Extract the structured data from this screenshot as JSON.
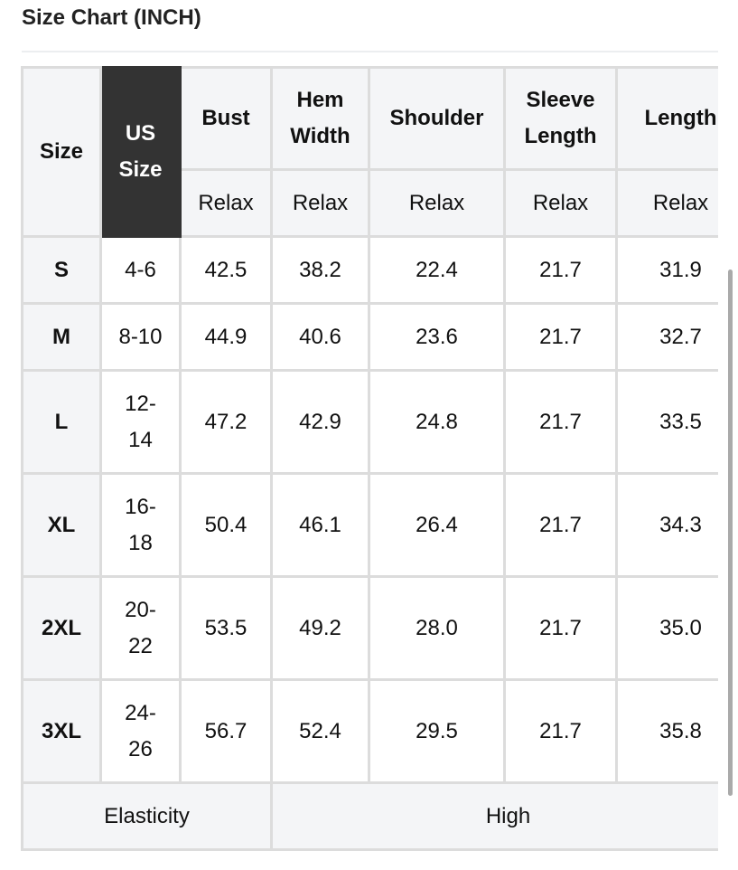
{
  "title": "Size Chart (INCH)",
  "headers": {
    "size": "Size",
    "us_size": "US Size",
    "columns": [
      "Bust",
      "Hem Width",
      "Shoulder",
      "Sleeve Length",
      "Length"
    ],
    "sub": [
      "Relax",
      "Relax",
      "Relax",
      "Relax",
      "Relax"
    ]
  },
  "rows": [
    {
      "size": "S",
      "us": "4-6",
      "values": [
        "42.5",
        "38.2",
        "22.4",
        "21.7",
        "31.9"
      ]
    },
    {
      "size": "M",
      "us": "8-10",
      "values": [
        "44.9",
        "40.6",
        "23.6",
        "21.7",
        "32.7"
      ]
    },
    {
      "size": "L",
      "us": "12-14",
      "values": [
        "47.2",
        "42.9",
        "24.8",
        "21.7",
        "33.5"
      ]
    },
    {
      "size": "XL",
      "us": "16-18",
      "values": [
        "50.4",
        "46.1",
        "26.4",
        "21.7",
        "34.3"
      ]
    },
    {
      "size": "2XL",
      "us": "20-22",
      "values": [
        "53.5",
        "49.2",
        "28.0",
        "21.7",
        "35.0"
      ]
    },
    {
      "size": "3XL",
      "us": "24-26",
      "values": [
        "56.7",
        "52.4",
        "29.5",
        "21.7",
        "35.8"
      ]
    }
  ],
  "footer": {
    "label": "Elasticity",
    "value": "High"
  }
}
